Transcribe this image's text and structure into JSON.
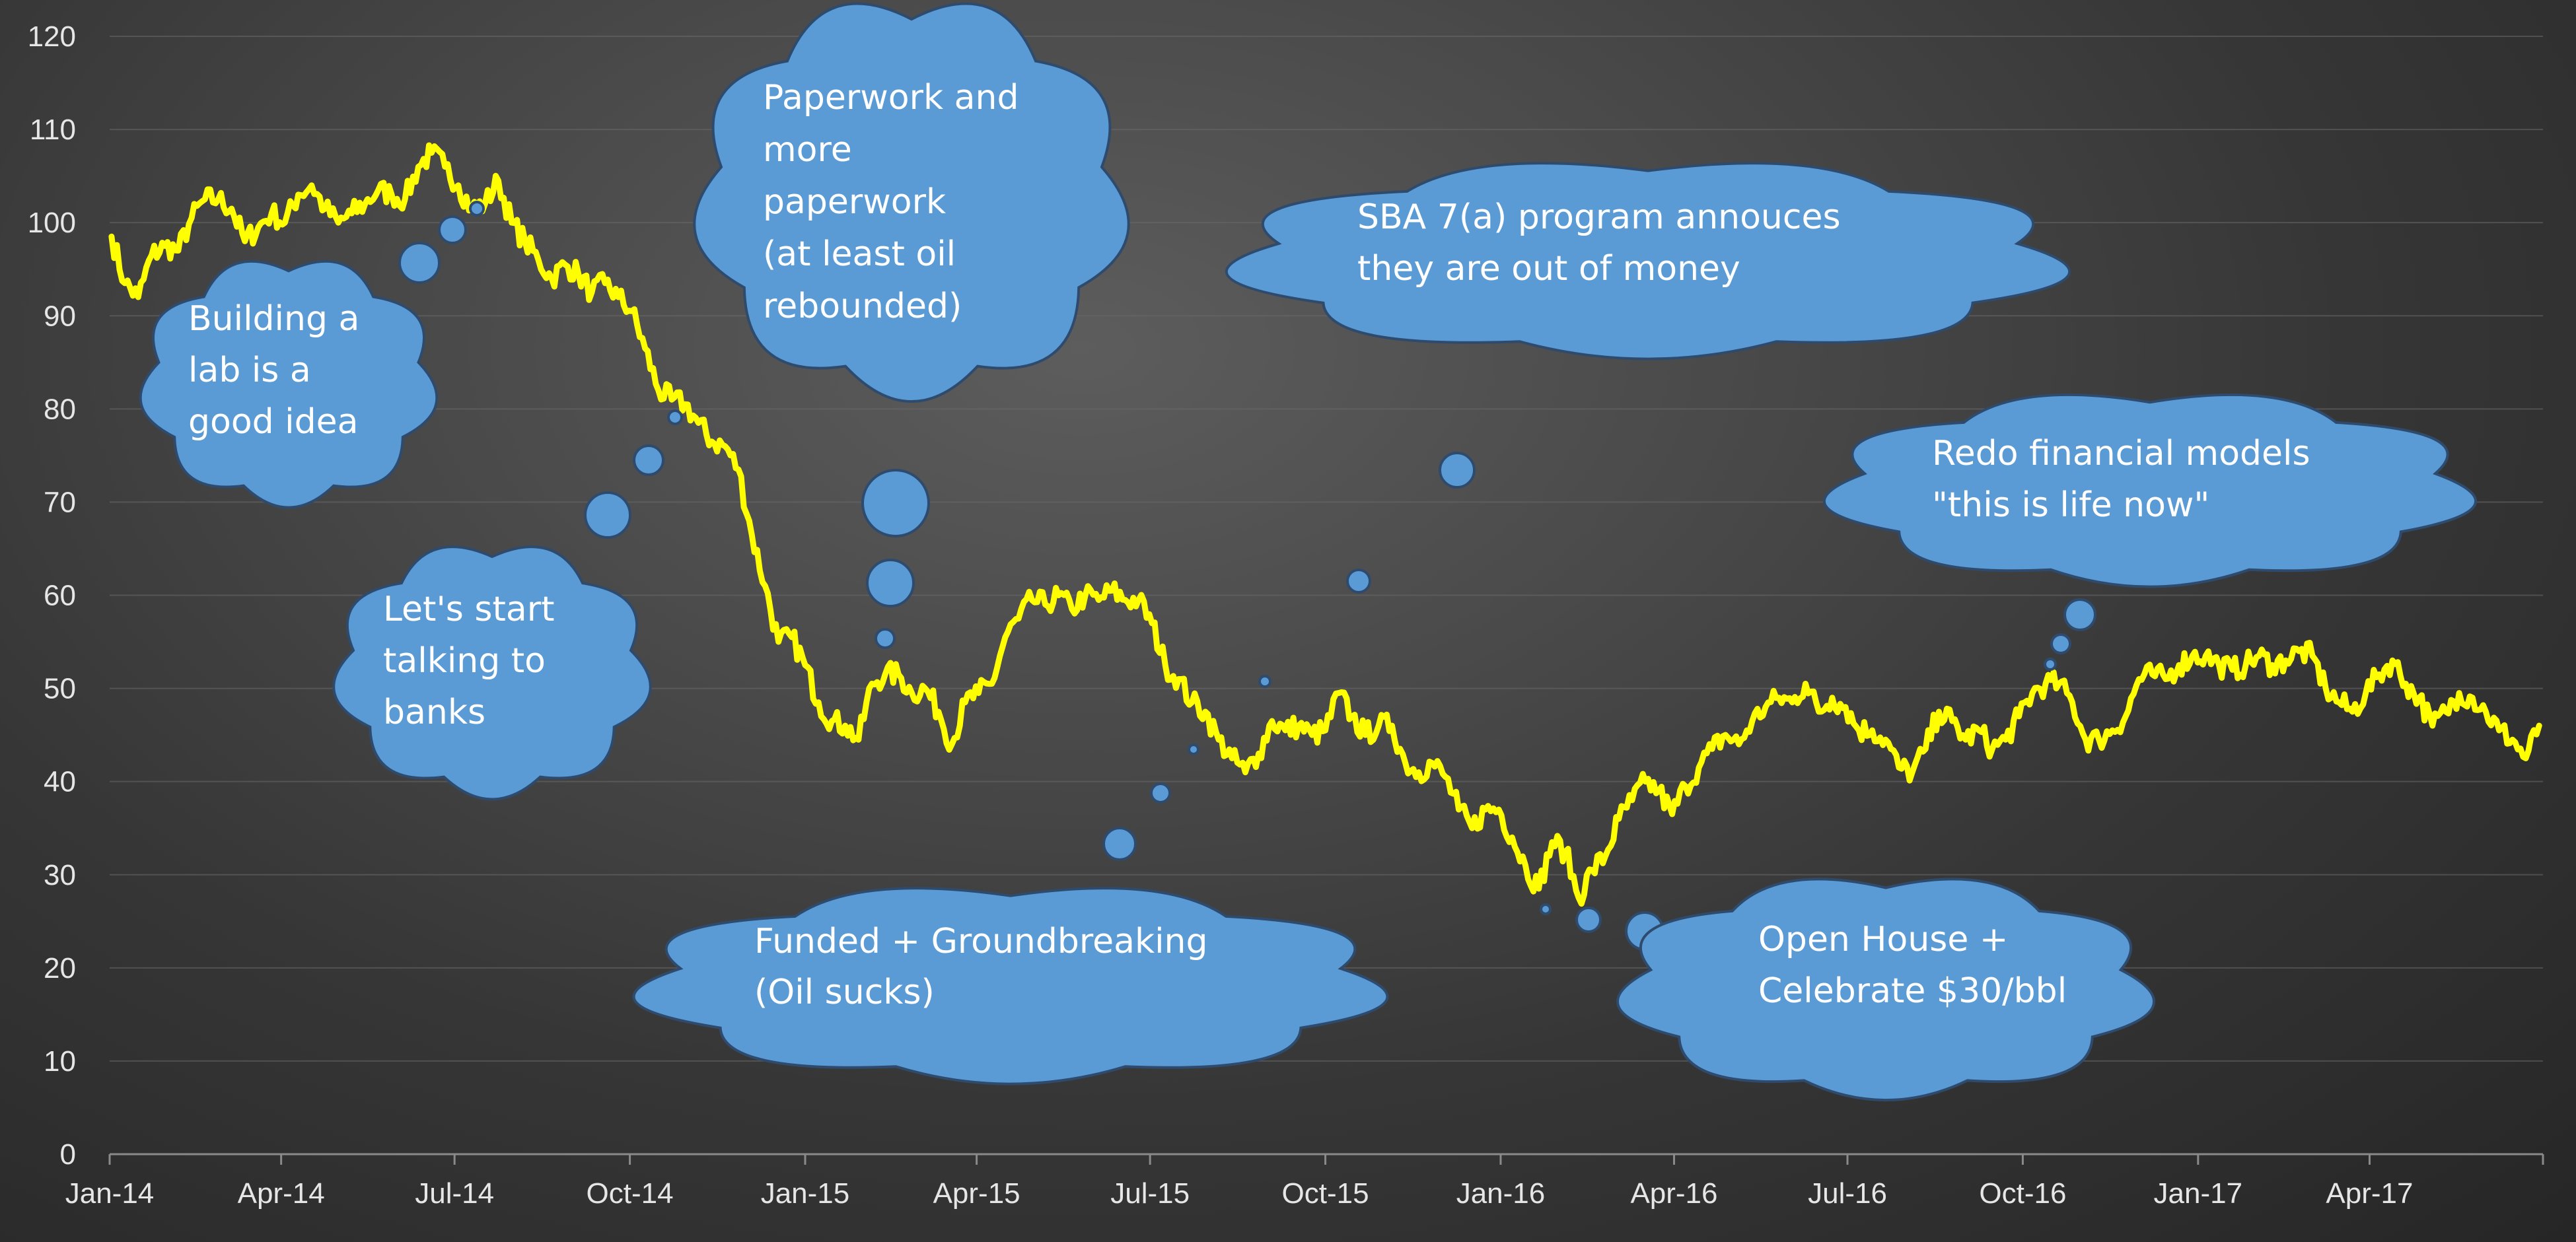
{
  "chart_data": {
    "type": "line",
    "xlabel": "",
    "ylabel": "",
    "ylim": [
      0,
      120
    ],
    "y_ticks": [
      0,
      10,
      20,
      30,
      40,
      50,
      60,
      70,
      80,
      90,
      100,
      110,
      120
    ],
    "x_ticks": [
      "Jan-14",
      "Apr-14",
      "Jul-14",
      "Oct-14",
      "Jan-15",
      "Apr-15",
      "Jul-15",
      "Oct-15",
      "Jan-16",
      "Apr-16",
      "Jul-16",
      "Oct-16",
      "Jan-17",
      "Apr-17"
    ],
    "x_range": [
      "2014-01-01",
      "2017-07-01"
    ],
    "grid": true,
    "line_color": "#ffff00",
    "series": [
      {
        "name": "",
        "points": [
          [
            "2014-01-02",
            98.5
          ],
          [
            "2014-01-09",
            93.5
          ],
          [
            "2014-01-16",
            92.0
          ],
          [
            "2014-01-23",
            96.5
          ],
          [
            "2014-01-30",
            97.5
          ],
          [
            "2014-02-06",
            97.0
          ],
          [
            "2014-02-13",
            100.5
          ],
          [
            "2014-02-20",
            102.5
          ],
          [
            "2014-02-27",
            102.5
          ],
          [
            "2014-03-06",
            101.5
          ],
          [
            "2014-03-13",
            98.0
          ],
          [
            "2014-03-20",
            99.5
          ],
          [
            "2014-03-27",
            101.0
          ],
          [
            "2014-04-03",
            100.0
          ],
          [
            "2014-04-10",
            103.0
          ],
          [
            "2014-04-17",
            104.0
          ],
          [
            "2014-04-24",
            101.5
          ],
          [
            "2014-05-01",
            100.0
          ],
          [
            "2014-05-08",
            101.0
          ],
          [
            "2014-05-15",
            102.0
          ],
          [
            "2014-05-22",
            103.5
          ],
          [
            "2014-05-29",
            103.0
          ],
          [
            "2014-06-05",
            102.5
          ],
          [
            "2014-06-12",
            106.0
          ],
          [
            "2014-06-19",
            107.5
          ],
          [
            "2014-06-26",
            106.0
          ],
          [
            "2014-07-03",
            104.0
          ],
          [
            "2014-07-10",
            101.5
          ],
          [
            "2014-07-17",
            102.0
          ],
          [
            "2014-07-24",
            104.5
          ],
          [
            "2014-07-31",
            100.0
          ],
          [
            "2014-08-07",
            98.0
          ],
          [
            "2014-08-14",
            96.0
          ],
          [
            "2014-08-21",
            94.0
          ],
          [
            "2014-08-28",
            95.5
          ],
          [
            "2014-09-04",
            94.5
          ],
          [
            "2014-09-11",
            92.5
          ],
          [
            "2014-09-18",
            93.5
          ],
          [
            "2014-09-25",
            92.0
          ],
          [
            "2014-10-02",
            90.5
          ],
          [
            "2014-10-09",
            86.5
          ],
          [
            "2014-10-16",
            82.0
          ],
          [
            "2014-10-23",
            81.0
          ],
          [
            "2014-10-30",
            80.5
          ],
          [
            "2014-11-06",
            78.5
          ],
          [
            "2014-11-13",
            76.5
          ],
          [
            "2014-11-20",
            76.0
          ],
          [
            "2014-11-27",
            73.5
          ],
          [
            "2014-12-04",
            66.5
          ],
          [
            "2014-12-11",
            61.0
          ],
          [
            "2014-12-18",
            55.0
          ],
          [
            "2014-12-25",
            55.5
          ],
          [
            "2015-01-01",
            52.5
          ],
          [
            "2015-01-08",
            48.5
          ],
          [
            "2015-01-15",
            46.5
          ],
          [
            "2015-01-22",
            46.0
          ],
          [
            "2015-01-29",
            44.5
          ],
          [
            "2015-02-05",
            50.5
          ],
          [
            "2015-02-12",
            51.5
          ],
          [
            "2015-02-19",
            51.5
          ],
          [
            "2015-02-26",
            49.5
          ],
          [
            "2015-03-05",
            50.0
          ],
          [
            "2015-03-12",
            47.5
          ],
          [
            "2015-03-19",
            44.0
          ],
          [
            "2015-03-26",
            48.5
          ],
          [
            "2015-04-02",
            49.5
          ],
          [
            "2015-04-09",
            50.5
          ],
          [
            "2015-04-16",
            55.5
          ],
          [
            "2015-04-23",
            57.5
          ],
          [
            "2015-04-30",
            59.5
          ],
          [
            "2015-05-07",
            59.0
          ],
          [
            "2015-05-14",
            60.0
          ],
          [
            "2015-05-21",
            58.5
          ],
          [
            "2015-05-28",
            60.0
          ],
          [
            "2015-06-04",
            59.5
          ],
          [
            "2015-06-11",
            60.5
          ],
          [
            "2015-06-18",
            59.5
          ],
          [
            "2015-06-25",
            59.5
          ],
          [
            "2015-07-02",
            57.0
          ],
          [
            "2015-07-09",
            52.5
          ],
          [
            "2015-07-16",
            51.0
          ],
          [
            "2015-07-23",
            48.5
          ],
          [
            "2015-07-30",
            47.5
          ],
          [
            "2015-08-06",
            44.5
          ],
          [
            "2015-08-13",
            42.5
          ],
          [
            "2015-08-20",
            41.0
          ],
          [
            "2015-08-27",
            43.0
          ],
          [
            "2015-09-03",
            46.5
          ],
          [
            "2015-09-10",
            45.5
          ],
          [
            "2015-09-17",
            46.0
          ],
          [
            "2015-09-24",
            45.0
          ],
          [
            "2015-10-01",
            45.5
          ],
          [
            "2015-10-08",
            49.5
          ],
          [
            "2015-10-15",
            47.0
          ],
          [
            "2015-10-22",
            45.0
          ],
          [
            "2015-10-29",
            46.0
          ],
          [
            "2015-11-05",
            46.0
          ],
          [
            "2015-11-12",
            42.0
          ],
          [
            "2015-11-19",
            41.0
          ],
          [
            "2015-11-26",
            42.0
          ],
          [
            "2015-12-03",
            40.5
          ],
          [
            "2015-12-10",
            37.0
          ],
          [
            "2015-12-17",
            35.0
          ],
          [
            "2015-12-24",
            37.0
          ],
          [
            "2015-12-31",
            37.0
          ],
          [
            "2016-01-07",
            34.0
          ],
          [
            "2016-01-14",
            31.0
          ],
          [
            "2016-01-21",
            28.5
          ],
          [
            "2016-01-28",
            33.5
          ],
          [
            "2016-02-04",
            32.5
          ],
          [
            "2016-02-11",
            27.5
          ],
          [
            "2016-02-18",
            30.5
          ],
          [
            "2016-02-25",
            32.0
          ],
          [
            "2016-03-03",
            36.0
          ],
          [
            "2016-03-10",
            38.0
          ],
          [
            "2016-03-17",
            40.0
          ],
          [
            "2016-03-24",
            39.0
          ],
          [
            "2016-03-31",
            36.5
          ],
          [
            "2016-04-07",
            39.5
          ],
          [
            "2016-04-14",
            41.5
          ],
          [
            "2016-04-21",
            43.5
          ],
          [
            "2016-04-28",
            45.0
          ],
          [
            "2016-05-05",
            44.0
          ],
          [
            "2016-05-12",
            46.5
          ],
          [
            "2016-05-19",
            48.0
          ],
          [
            "2016-05-26",
            49.0
          ],
          [
            "2016-06-02",
            48.5
          ],
          [
            "2016-06-09",
            50.5
          ],
          [
            "2016-06-16",
            47.5
          ],
          [
            "2016-06-23",
            49.0
          ],
          [
            "2016-06-30",
            48.0
          ],
          [
            "2016-07-07",
            45.5
          ],
          [
            "2016-07-14",
            45.5
          ],
          [
            "2016-07-21",
            44.5
          ],
          [
            "2016-07-28",
            41.5
          ],
          [
            "2016-08-04",
            41.0
          ],
          [
            "2016-08-11",
            43.5
          ],
          [
            "2016-08-18",
            47.5
          ],
          [
            "2016-08-25",
            46.5
          ],
          [
            "2016-09-01",
            44.5
          ],
          [
            "2016-09-08",
            45.5
          ],
          [
            "2016-09-15",
            43.5
          ],
          [
            "2016-09-22",
            44.5
          ],
          [
            "2016-09-29",
            47.0
          ],
          [
            "2016-10-06",
            49.5
          ],
          [
            "2016-10-13",
            50.5
          ],
          [
            "2016-10-20",
            50.5
          ],
          [
            "2016-10-27",
            48.5
          ],
          [
            "2016-11-03",
            44.5
          ],
          [
            "2016-11-10",
            44.5
          ],
          [
            "2016-11-17",
            45.5
          ],
          [
            "2016-11-24",
            47.0
          ],
          [
            "2016-12-01",
            51.0
          ],
          [
            "2016-12-08",
            51.5
          ],
          [
            "2016-12-15",
            51.0
          ],
          [
            "2016-12-22",
            52.5
          ],
          [
            "2016-12-29",
            53.5
          ],
          [
            "2017-01-05",
            53.5
          ],
          [
            "2017-01-12",
            52.5
          ],
          [
            "2017-01-19",
            52.0
          ],
          [
            "2017-01-26",
            52.5
          ],
          [
            "2017-02-02",
            53.5
          ],
          [
            "2017-02-09",
            52.5
          ],
          [
            "2017-02-16",
            53.0
          ],
          [
            "2017-02-23",
            54.0
          ],
          [
            "2017-03-02",
            53.5
          ],
          [
            "2017-03-09",
            50.0
          ],
          [
            "2017-03-16",
            48.5
          ],
          [
            "2017-03-23",
            47.5
          ],
          [
            "2017-03-30",
            49.5
          ],
          [
            "2017-04-06",
            51.5
          ],
          [
            "2017-04-13",
            53.0
          ],
          [
            "2017-04-20",
            50.5
          ],
          [
            "2017-04-27",
            49.0
          ],
          [
            "2017-05-04",
            46.0
          ],
          [
            "2017-05-11",
            47.5
          ],
          [
            "2017-05-18",
            49.5
          ],
          [
            "2017-05-25",
            49.0
          ],
          [
            "2017-06-01",
            47.5
          ],
          [
            "2017-06-08",
            45.5
          ],
          [
            "2017-06-15",
            44.5
          ],
          [
            "2017-06-22",
            42.5
          ],
          [
            "2017-06-29",
            46.0
          ]
        ]
      }
    ],
    "annotations": [
      {
        "shape": "cloud",
        "lines": [
          "Building a",
          "lab is a",
          "good idea"
        ]
      },
      {
        "shape": "cloud",
        "lines": [
          "Let's start",
          "talking to",
          "banks"
        ]
      },
      {
        "shape": "cloud",
        "lines": [
          "Paperwork and",
          "more",
          "paperwork",
          "(at least oil",
          "rebounded)"
        ]
      },
      {
        "shape": "cloud",
        "lines": [
          "Funded + Groundbreaking",
          "(Oil sucks)"
        ]
      },
      {
        "shape": "cloud",
        "lines": [
          "SBA 7(a) program annouces",
          "they are out of money"
        ]
      },
      {
        "shape": "cloud",
        "lines": [
          "Open House +",
          "Celebrate $30/bbl"
        ]
      },
      {
        "shape": "cloud",
        "lines": [
          "Redo financial models",
          "\"this is life now\""
        ]
      }
    ]
  }
}
